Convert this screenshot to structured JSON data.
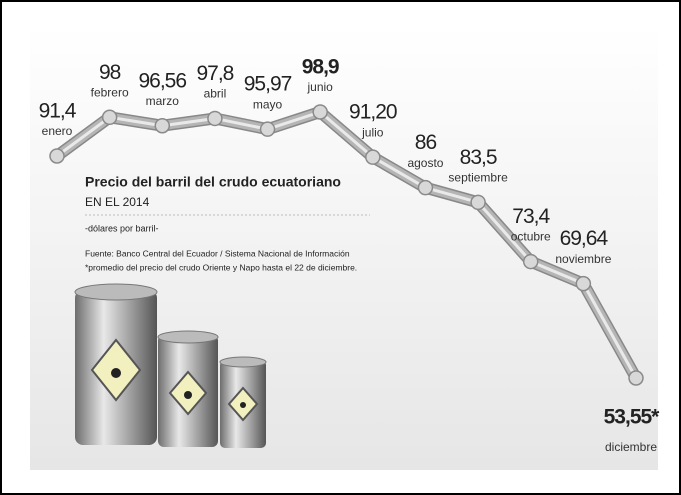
{
  "chart_data": {
    "type": "line",
    "title": "Precio del barril del crudo ecuatoriano",
    "subtitle": "EN EL 2014",
    "unit_note": "-dólares por barril-",
    "source": "Fuente: Banco Central del Ecuador / Sistema Nacional de Información",
    "footnote": "*promedio del precio del crudo Oriente y Napo hasta el 22 de diciembre.",
    "categories": [
      "enero",
      "febrero",
      "marzo",
      "abril",
      "mayo",
      "junio",
      "julio",
      "agosto",
      "septiembre",
      "octubre",
      "noviembre",
      "diciembre"
    ],
    "values": [
      91.4,
      98,
      96.56,
      97.8,
      95.97,
      98.9,
      91.2,
      86,
      83.5,
      73.4,
      69.64,
      53.55
    ],
    "value_labels": [
      "91,4",
      "98",
      "96,56",
      "97,8",
      "95,97",
      "98,9",
      "91,20",
      "86",
      "83,5",
      "73,4",
      "69,64",
      "53,55*"
    ],
    "color": "#b5b5b5"
  }
}
